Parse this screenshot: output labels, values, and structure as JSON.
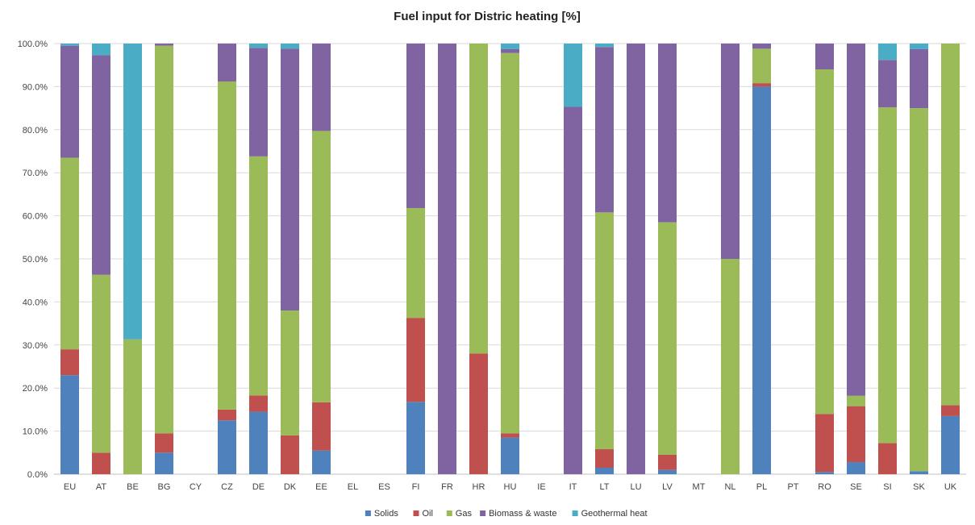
{
  "chart_data": {
    "type": "bar",
    "stacked": true,
    "title": "Fuel input for Distric heating [%]",
    "xlabel": "",
    "ylabel": "",
    "ylim": [
      0,
      100
    ],
    "ytick_values": [
      0,
      10,
      20,
      30,
      40,
      50,
      60,
      70,
      80,
      90,
      100
    ],
    "ytick_labels": [
      "0.0%",
      "10.0%",
      "20.0%",
      "30.0%",
      "40.0%",
      "50.0%",
      "60.0%",
      "70.0%",
      "80.0%",
      "90.0%",
      "100.0%"
    ],
    "grid": true,
    "legend_position": "bottom",
    "categories": [
      "EU",
      "AT",
      "BE",
      "BG",
      "CY",
      "CZ",
      "DE",
      "DK",
      "EE",
      "EL",
      "ES",
      "FI",
      "FR",
      "HR",
      "HU",
      "IE",
      "IT",
      "LT",
      "LU",
      "LV",
      "MT",
      "NL",
      "PL",
      "PT",
      "RO",
      "SE",
      "SI",
      "SK",
      "UK"
    ],
    "series": [
      {
        "name": "Solids",
        "color": "#4f81bd",
        "values": [
          23,
          0,
          0,
          5,
          0,
          12.5,
          14.5,
          0,
          5.5,
          0,
          0,
          16.8,
          0,
          0,
          8.5,
          0,
          0,
          1.5,
          0,
          1,
          0,
          0,
          90,
          0,
          0.5,
          2.8,
          0,
          0.7,
          13.5
        ]
      },
      {
        "name": "Oil",
        "color": "#c0504d",
        "values": [
          6,
          5,
          0,
          4.5,
          0,
          2.5,
          3.8,
          9,
          11.2,
          0,
          0,
          19.5,
          0,
          28,
          1,
          0,
          0,
          4.3,
          0,
          3.5,
          0,
          0,
          0.8,
          0,
          13.5,
          13,
          7.2,
          0,
          2.5
        ]
      },
      {
        "name": "Gas",
        "color": "#9bbb59",
        "values": [
          44.5,
          41.3,
          31.3,
          90,
          0,
          76.2,
          55.5,
          29,
          63,
          0,
          0,
          25.5,
          0,
          72,
          88.3,
          0,
          0,
          55,
          0,
          54,
          0,
          50,
          8,
          0,
          80,
          2.4,
          78,
          84.3,
          84
        ]
      },
      {
        "name": "Biomass & waste",
        "color": "#8064a2",
        "values": [
          26,
          51,
          0,
          0.5,
          0,
          8.8,
          25.2,
          60.8,
          20.3,
          0,
          0,
          38.2,
          100,
          0,
          0.9,
          0,
          85.3,
          38.4,
          100,
          41.5,
          0,
          50,
          1.2,
          0,
          6,
          81.8,
          11,
          13.7,
          0
        ]
      },
      {
        "name": "Geothermal heat",
        "color": "#4bacc6",
        "values": [
          0.5,
          2.7,
          68.7,
          0,
          0,
          0,
          1,
          1.2,
          0,
          0,
          0,
          0,
          0,
          0,
          1.3,
          0,
          14.7,
          0.8,
          0,
          0,
          0,
          0,
          0,
          0,
          0,
          0,
          3.8,
          1.3,
          0
        ]
      }
    ]
  }
}
